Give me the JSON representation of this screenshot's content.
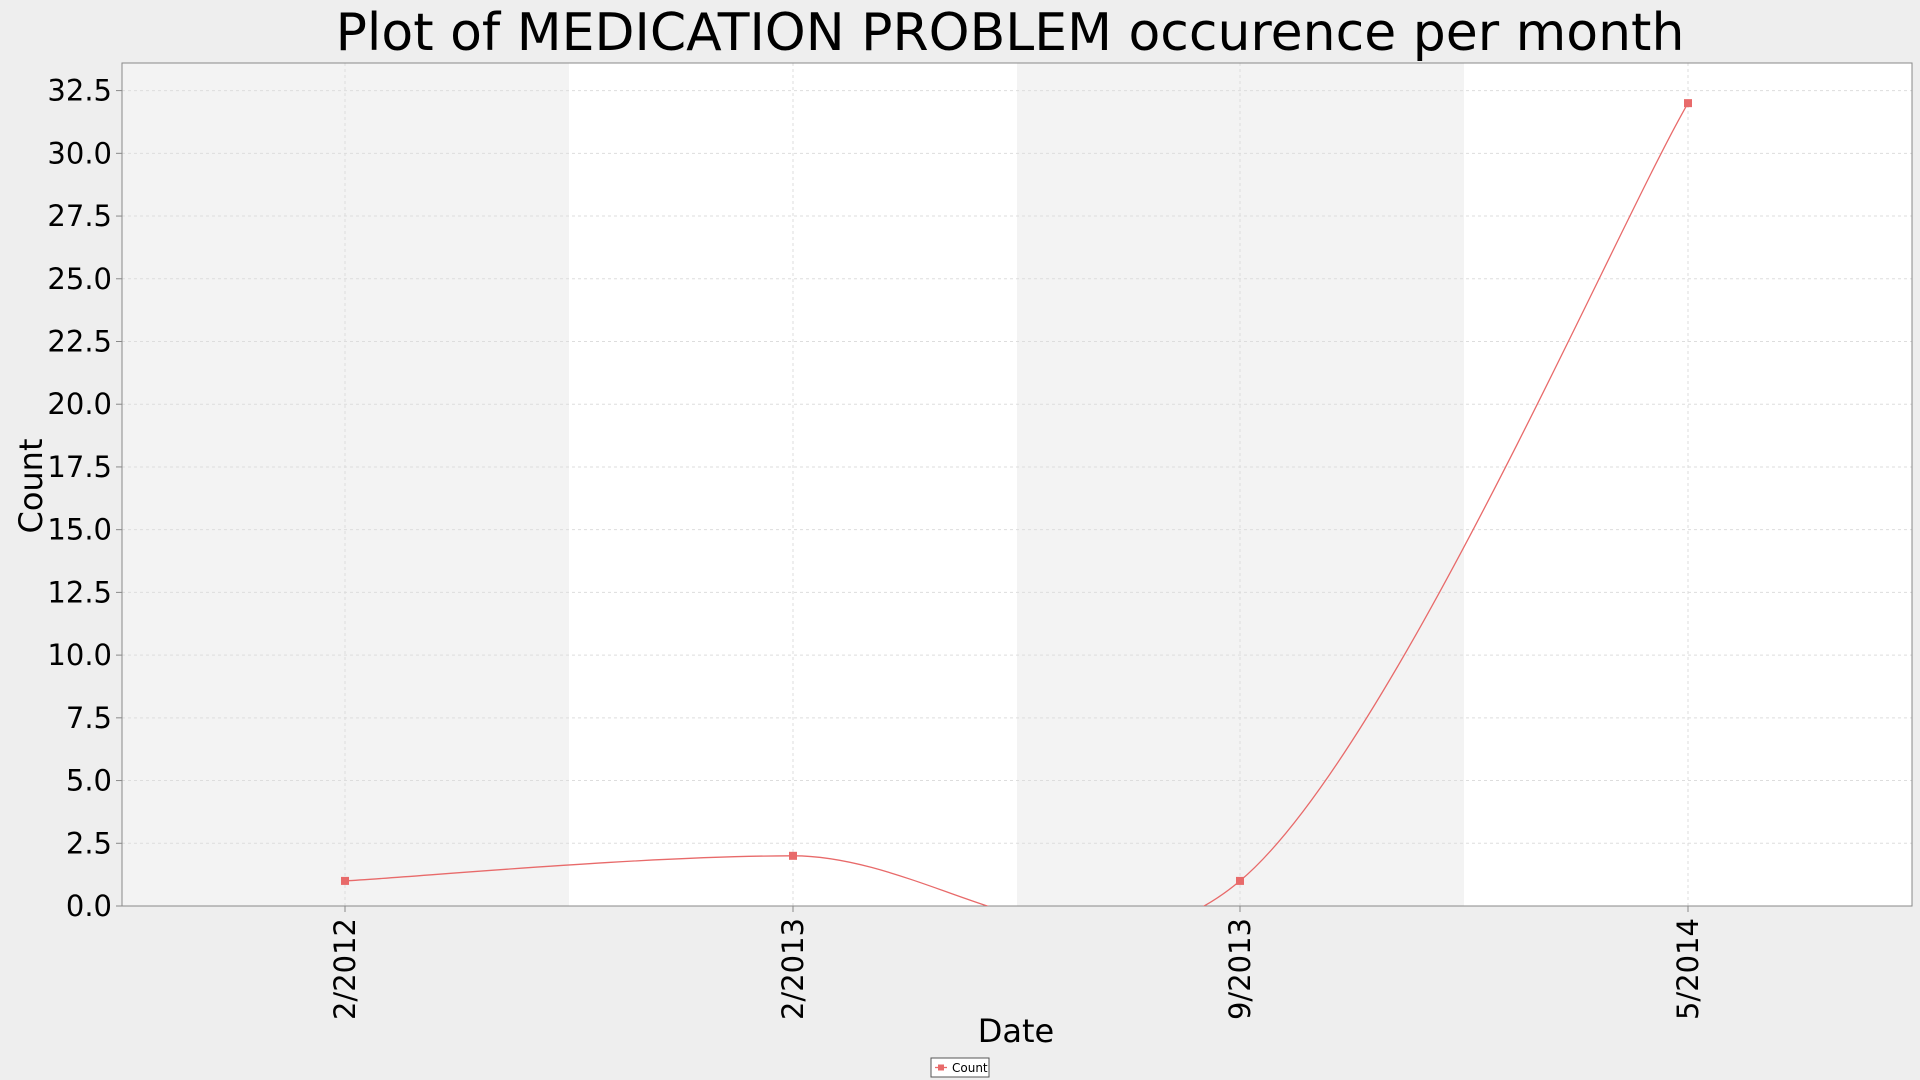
{
  "chart_data": {
    "type": "line",
    "title": "Plot of MEDICATION PROBLEM occurence per month",
    "xlabel": "Date",
    "ylabel": "Count",
    "x_ticks": [
      "2/2012",
      "2/2013",
      "9/2013",
      "5/2014"
    ],
    "y_ticks": [
      "0.0",
      "2.5",
      "5.0",
      "7.5",
      "10.0",
      "12.5",
      "15.0",
      "17.5",
      "20.0",
      "22.5",
      "25.0",
      "27.5",
      "30.0",
      "32.5"
    ],
    "ylim": [
      0,
      33.6
    ],
    "grid": true,
    "legend_position": "bottom-center",
    "series": [
      {
        "name": "Count",
        "color": "#e86a6a",
        "points": [
          {
            "x": "2/2012",
            "y": 1
          },
          {
            "x": "2/2013",
            "y": 2
          },
          {
            "x": "9/2013",
            "y": 1
          },
          {
            "x": "5/2014",
            "y": 32
          }
        ]
      }
    ],
    "colors": {
      "band_dark": "#f3f3f3",
      "band_light": "#ffffff",
      "grid": "#dddddd",
      "axis": "#888888"
    }
  }
}
